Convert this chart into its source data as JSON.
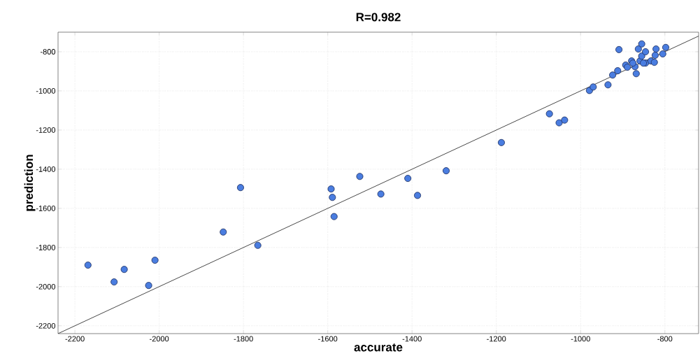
{
  "chart_data": {
    "type": "scatter",
    "title": "R=0.982",
    "xlabel": "accurate",
    "ylabel": "prediction",
    "xlim": [
      -2240,
      -720
    ],
    "ylim": [
      -2240,
      -700
    ],
    "xticks": [
      -2200,
      -2000,
      -1800,
      -1600,
      -1400,
      -1200,
      -1000,
      -800
    ],
    "yticks": [
      -2200,
      -2000,
      -1800,
      -1600,
      -1400,
      -1200,
      -1000,
      -800
    ],
    "grid": true,
    "series": [
      {
        "marker": "circle",
        "color": "#4a7de0",
        "x": [
          -2169,
          -2107,
          -2083,
          -2025,
          -2010,
          -1848,
          -1807,
          -1766,
          -1592,
          -1589,
          -1585,
          -1524,
          -1474,
          -1410,
          -1387,
          -1319,
          -1188,
          -1074,
          -1051,
          -1038,
          -979,
          -970,
          -935,
          -924,
          -912,
          -909,
          -893,
          -889,
          -879,
          -868,
          -863,
          -855,
          -859,
          -855,
          -846,
          -846,
          -833,
          -825,
          -821,
          -823,
          -805,
          -798,
          -871,
          -851,
          -876
        ],
        "values": [
          -1890,
          -1976,
          -1912,
          -1994,
          -1865,
          -1721,
          -1494,
          -1789,
          -1501,
          -1544,
          -1642,
          -1437,
          -1527,
          -1447,
          -1534,
          -1408,
          -1264,
          -1117,
          -1163,
          -1149,
          -998,
          -980,
          -969,
          -919,
          -897,
          -789,
          -868,
          -879,
          -847,
          -912,
          -786,
          -760,
          -847,
          -822,
          -800,
          -858,
          -847,
          -854,
          -786,
          -818,
          -811,
          -778,
          -876,
          -858,
          -858
        ]
      },
      {
        "type": "line",
        "marker": "none",
        "color": "#333333",
        "line_style": "solid",
        "x": [
          -2240,
          -720
        ],
        "values": [
          -2240,
          -720
        ]
      }
    ]
  }
}
